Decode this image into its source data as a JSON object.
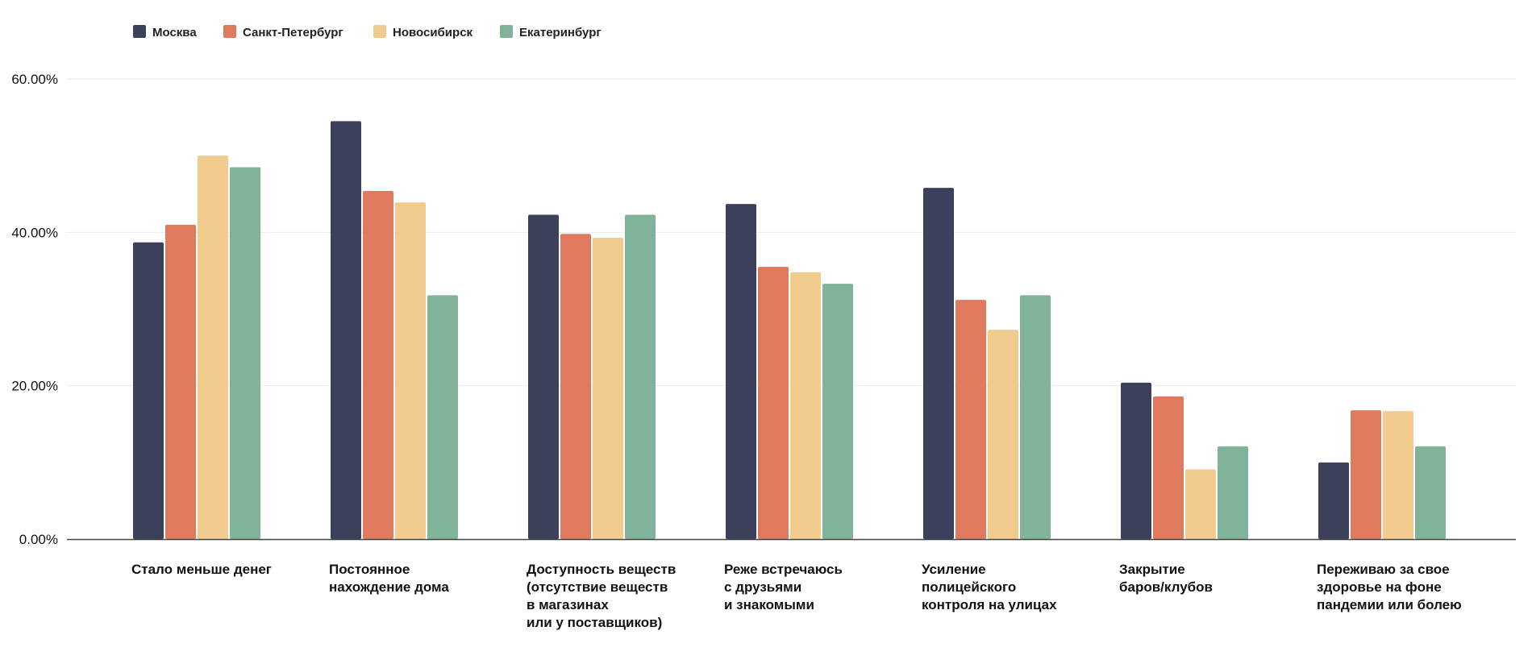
{
  "chart_data": {
    "type": "bar",
    "categories": [
      [
        "Стало меньше денег"
      ],
      [
        "Постоянное",
        "нахождение дома"
      ],
      [
        "Доступность веществ",
        "(отсутствие веществ",
        "в магазинах",
        "или у поставщиков)"
      ],
      [
        "Реже встречаюсь",
        "с друзьями",
        "и знакомыми"
      ],
      [
        "Усиление",
        "полицейского",
        "контроля на улицах"
      ],
      [
        "Закрытие",
        "баров/клубов"
      ],
      [
        "Переживаю за свое",
        "здоровье на фоне",
        "пандемии или болею"
      ]
    ],
    "series": [
      {
        "name": "Москва",
        "color": "#3d405b",
        "values": [
          38.7,
          54.5,
          42.3,
          43.7,
          45.8,
          20.4,
          10.0
        ]
      },
      {
        "name": "Санкт-Петербург",
        "color": "#e07a5f",
        "values": [
          41.0,
          45.4,
          39.8,
          35.5,
          31.2,
          18.6,
          16.8
        ]
      },
      {
        "name": "Новосибирск",
        "color": "#f2cc8f",
        "values": [
          50.0,
          43.9,
          39.3,
          34.8,
          27.3,
          9.1,
          16.7
        ]
      },
      {
        "name": "Екатеринбург",
        "color": "#81b29a",
        "values": [
          48.5,
          31.8,
          42.3,
          33.3,
          31.8,
          12.1,
          12.1
        ]
      }
    ],
    "yticks": [
      "0.00%",
      "20.00%",
      "40.00%",
      "60.00%"
    ],
    "ylim": [
      0,
      60
    ],
    "grid": true,
    "legend": "top-left",
    "title": "",
    "xlabel": "",
    "ylabel": ""
  }
}
